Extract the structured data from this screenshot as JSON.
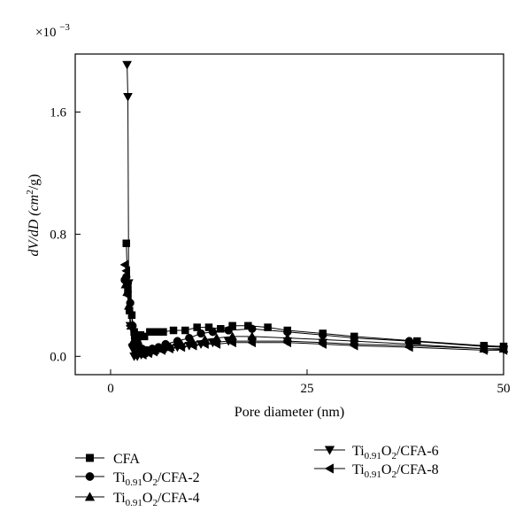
{
  "chart_data": {
    "type": "line",
    "title": "",
    "xlabel": "Pore diameter (nm)",
    "ylabel": {
      "main": "dV/dD (cm",
      "sup": "2",
      "tail": "/g)"
    },
    "y_multiplier": {
      "base": "×10",
      "exp": "−3"
    },
    "xlim": [
      -4.5,
      50
    ],
    "ylim": [
      -0.12,
      1.98
    ],
    "x_ticks": [
      0,
      25,
      50
    ],
    "x_tick_labels": [
      "0",
      "25",
      "50"
    ],
    "y_ticks": [
      0.0,
      0.8,
      1.6
    ],
    "y_tick_labels": [
      "0.0",
      "0.8",
      "1.6"
    ],
    "grid": false,
    "legend_placement": "below",
    "series": [
      {
        "key": "cfa",
        "marker": "square",
        "color": "#000000",
        "legend": {
          "base": "CFA"
        },
        "x": [
          2.0,
          2.2,
          2.4,
          2.7,
          3.0,
          3.4,
          3.8,
          4.3,
          5.0,
          5.8,
          6.7,
          8.0,
          9.5,
          11.0,
          12.5,
          14.0,
          15.5,
          17.5,
          20.0,
          22.5,
          27.0,
          31.0,
          39.0,
          47.5,
          50.0
        ],
        "y": [
          0.74,
          0.44,
          0.3,
          0.27,
          0.16,
          0.12,
          0.14,
          0.13,
          0.16,
          0.16,
          0.16,
          0.17,
          0.17,
          0.19,
          0.19,
          0.18,
          0.2,
          0.2,
          0.19,
          0.17,
          0.15,
          0.13,
          0.1,
          0.07,
          0.065
        ]
      },
      {
        "key": "cfa2",
        "marker": "circle",
        "color": "#000000",
        "legend": {
          "base": "Ti",
          "sub": "0.91",
          "mid": "O",
          "sub2": "2",
          "tail": "/CFA-2"
        },
        "x": [
          1.8,
          2.0,
          2.2,
          2.5,
          2.8,
          3.1,
          3.5,
          4.0,
          4.6,
          5.3,
          6.1,
          7.0,
          8.5,
          10.0,
          11.5,
          13.0,
          15.0,
          18.0,
          22.5,
          27.0,
          31.0,
          38.0,
          47.5,
          50.0
        ],
        "y": [
          0.5,
          0.52,
          0.48,
          0.35,
          0.2,
          0.12,
          0.08,
          0.05,
          0.04,
          0.05,
          0.06,
          0.08,
          0.1,
          0.12,
          0.15,
          0.16,
          0.17,
          0.18,
          0.16,
          0.14,
          0.12,
          0.1,
          0.065,
          0.06
        ]
      },
      {
        "key": "cfa4",
        "marker": "triangle-up",
        "color": "#000000",
        "legend": {
          "base": "Ti",
          "sub": "0.91",
          "mid": "O",
          "sub2": "2",
          "tail": "/CFA-4"
        },
        "x": [
          1.9,
          2.1,
          2.3,
          2.6,
          2.9,
          3.3,
          3.7,
          4.2,
          4.8,
          5.6,
          6.5,
          7.6,
          9.0,
          10.5,
          12.0,
          13.5,
          15.5,
          18.0,
          22.5,
          27.0,
          31.0,
          38.0,
          47.5,
          50.0
        ],
        "y": [
          0.47,
          0.42,
          0.33,
          0.2,
          0.1,
          0.05,
          0.03,
          0.02,
          0.03,
          0.04,
          0.05,
          0.06,
          0.08,
          0.09,
          0.11,
          0.12,
          0.13,
          0.13,
          0.12,
          0.11,
          0.1,
          0.08,
          0.05,
          0.05
        ]
      },
      {
        "key": "cfa6",
        "marker": "triangle-down",
        "color": "#000000",
        "legend": {
          "base": "Ti",
          "sub": "0.91",
          "mid": "O",
          "sub2": "2",
          "tail": "/CFA-6"
        },
        "x": [
          2.1,
          2.2,
          2.3,
          2.5,
          2.8,
          3.0,
          3.4,
          3.9,
          4.5,
          5.2,
          6.0,
          7.0,
          8.5,
          10.0,
          11.5,
          13.0,
          15.0,
          18.0,
          22.5,
          27.0,
          31.0,
          38.0,
          47.5,
          50.0
        ],
        "y": [
          1.91,
          1.7,
          0.48,
          0.2,
          0.05,
          0.0,
          0.0,
          0.01,
          0.02,
          0.03,
          0.04,
          0.05,
          0.06,
          0.07,
          0.08,
          0.09,
          0.1,
          0.1,
          0.1,
          0.09,
          0.08,
          0.07,
          0.05,
          0.045
        ]
      },
      {
        "key": "cfa8",
        "marker": "triangle-left",
        "color": "#000000",
        "legend": {
          "base": "Ti",
          "sub": "0.91",
          "mid": "O",
          "sub2": "2",
          "tail": "/CFA-8"
        },
        "x": [
          1.8,
          2.0,
          2.2,
          2.5,
          2.8,
          3.2,
          3.6,
          4.1,
          4.8,
          5.5,
          6.5,
          7.5,
          9.0,
          10.5,
          12.0,
          13.5,
          15.5,
          18.0,
          22.5,
          27.0,
          31.0,
          38.0,
          47.5,
          50.0
        ],
        "y": [
          0.6,
          0.56,
          0.4,
          0.2,
          0.08,
          0.03,
          0.02,
          0.01,
          0.02,
          0.03,
          0.04,
          0.05,
          0.06,
          0.07,
          0.08,
          0.08,
          0.09,
          0.09,
          0.09,
          0.08,
          0.07,
          0.06,
          0.04,
          0.04
        ]
      }
    ]
  }
}
